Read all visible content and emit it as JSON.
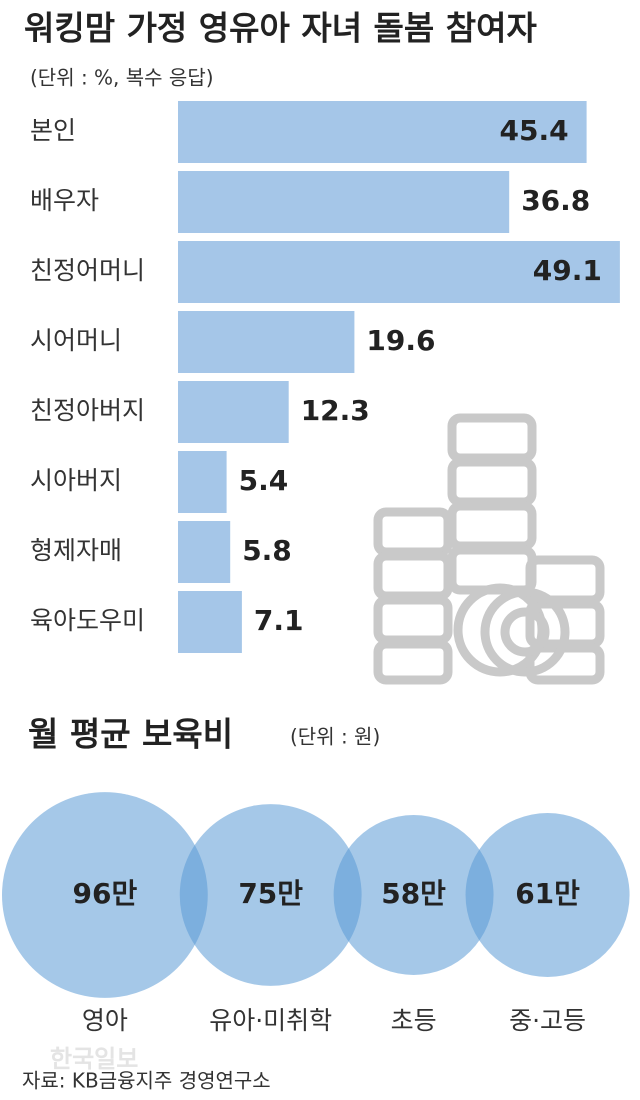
{
  "chart_data": [
    {
      "type": "hbar",
      "title": "워킹맘 가정 영유아 자녀 돌봄 참여자",
      "subtitle": "(단위 : %, 복수 응답)",
      "categories": [
        "본인",
        "배우자",
        "친정어머니",
        "시어머니",
        "친정아버지",
        "시아버지",
        "형제자매",
        "육아도우미"
      ],
      "values": [
        45.4,
        36.8,
        49.1,
        19.6,
        12.3,
        5.4,
        5.8,
        7.1
      ],
      "color": "#a5c6e8"
    },
    {
      "type": "bubble",
      "title": "월 평균 보육비",
      "subtitle": "(단위 : 원)",
      "categories": [
        "영아",
        "유아·미취학",
        "초등",
        "중·고등"
      ],
      "values": [
        960000,
        750000,
        580000,
        610000
      ],
      "value_labels": [
        "96만",
        "75만",
        "58만",
        "61만"
      ],
      "color": "#5b9bd5"
    }
  ],
  "watermark": "한국일보",
  "source": "자료: KB금융지주 경영연구소"
}
